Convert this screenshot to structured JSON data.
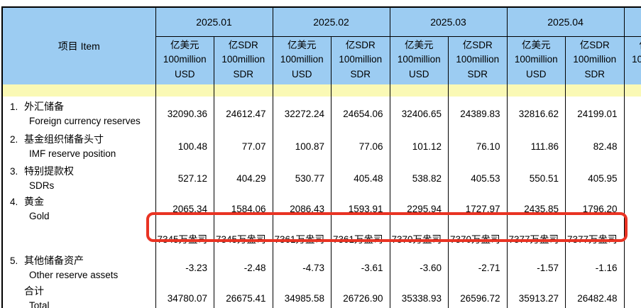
{
  "colors": {
    "header_blue": "#9CCCF2",
    "stripe_yellow": "#FAF9B5",
    "highlight_red": "#E93323",
    "border_black": "#000000",
    "background": "#FFFFFF"
  },
  "table": {
    "item_header": "项目  Item",
    "periods": [
      "2025.01",
      "2025.02",
      "2025.03",
      "2025.04"
    ],
    "partial_period": "",
    "usd_sub": [
      "亿美元",
      "100million",
      "USD"
    ],
    "sdr_sub": [
      "亿SDR",
      "100million",
      "SDR"
    ],
    "rows": [
      {
        "no": "1.",
        "zh": "外汇储备",
        "en": "Foreign currency reserves",
        "values": [
          "32090.36",
          "24612.47",
          "32272.24",
          "24654.06",
          "32406.65",
          "24389.83",
          "32816.62",
          "24199.01"
        ]
      },
      {
        "no": "2.",
        "zh": "基金组织储备头寸",
        "en": "IMF reserve position",
        "values": [
          "100.48",
          "77.07",
          "100.87",
          "77.06",
          "101.12",
          "76.10",
          "111.86",
          "82.48"
        ]
      },
      {
        "no": "3.",
        "zh": "特别提款权",
        "en": "SDRs",
        "values": [
          "527.12",
          "404.29",
          "530.77",
          "405.48",
          "538.82",
          "405.53",
          "550.51",
          "405.95"
        ]
      },
      {
        "no": "4.",
        "zh": "黄金",
        "en": "Gold",
        "values": [
          "2065.34",
          "1584.06",
          "2086.43",
          "1593.91",
          "2295.94",
          "1727.97",
          "2435.85",
          "1796.20"
        ]
      },
      {
        "no": "",
        "zh": "",
        "en": "",
        "values": [
          "7345万盎司",
          "7345万盎司",
          "7361万盎司",
          "7361万盎司",
          "7370万盎司",
          "7370万盎司",
          "7377万盎司",
          "7377万盎司"
        ],
        "highlighted": true
      },
      {
        "no": "5.",
        "zh": "其他储备资产",
        "en": "Other reserve assets",
        "values": [
          "-3.23",
          "-2.48",
          "-4.73",
          "-3.61",
          "-3.60",
          "-2.71",
          "-1.57",
          "-1.16"
        ]
      },
      {
        "no": "",
        "zh": "合计",
        "en": "Total",
        "values": [
          "34780.07",
          "26675.41",
          "34985.58",
          "26726.90",
          "35338.93",
          "26596.72",
          "35913.27",
          "26482.48"
        ]
      }
    ]
  }
}
